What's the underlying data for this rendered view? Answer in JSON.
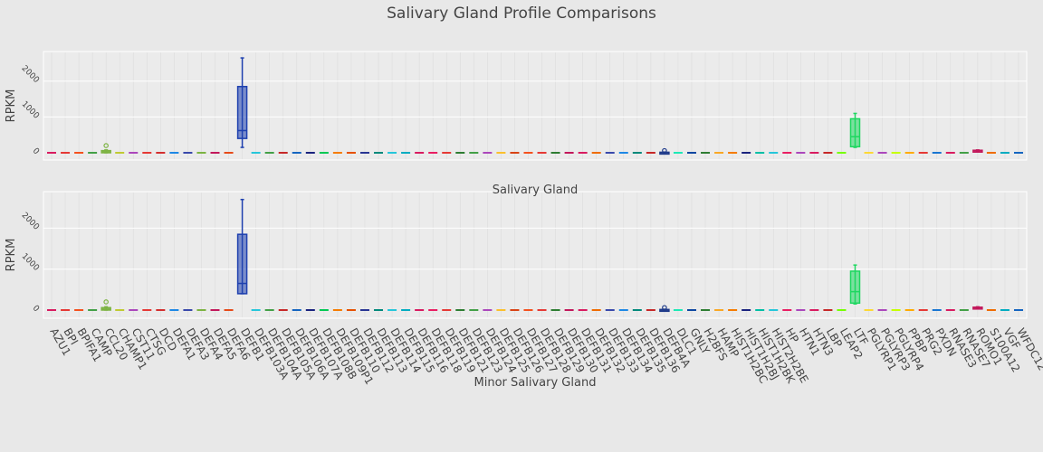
{
  "chart_data": {
    "type": "box",
    "title": "Salivary Gland Profile Comparisons",
    "categories": [
      "AZU1",
      "BPI",
      "BPIFA1",
      "CAMP",
      "CCL20",
      "CHAMP1",
      "CST11",
      "CTSG",
      "DCD",
      "DEFA1",
      "DEFA3",
      "DEFA4",
      "DEFA5",
      "DEFA6",
      "DEFB1",
      "DEFB103A",
      "DEFB104A",
      "DEFB105A",
      "DEFB106A",
      "DEFB107A",
      "DEFB108B",
      "DEFB109P1",
      "DEFB110",
      "DEFB112",
      "DEFB113",
      "DEFB114",
      "DEFB115",
      "DEFB116",
      "DEFB118",
      "DEFB119",
      "DEFB121",
      "DEFB123",
      "DEFB124",
      "DEFB125",
      "DEFB126",
      "DEFB127",
      "DEFB128",
      "DEFB129",
      "DEFB130",
      "DEFB131",
      "DEFB132",
      "DEFB133",
      "DEFB134",
      "DEFB135",
      "DEFB136",
      "DEFB4A",
      "DLC1",
      "GNLY",
      "H2BFS",
      "HAMP",
      "HIST1H2BC",
      "HIST1H2BJ",
      "HIST1H2BK",
      "HIST2H2BE",
      "HP",
      "HTN1",
      "HTN3",
      "LBP",
      "LEAP2",
      "LTF",
      "PGLYRP1",
      "PGLYRP3",
      "PGLYRP4",
      "PPBP",
      "PRG2",
      "PXDN",
      "RNASE3",
      "RNASE7",
      "ROMO1",
      "S100A12",
      "VGF",
      "WFDC12"
    ],
    "colors": [
      "#d81b60",
      "#e53935",
      "#f4511e",
      "#43a047",
      "#7cb342",
      "#c0ca33",
      "#ab47bc",
      "#e53935",
      "#d32f2f",
      "#1e88e5",
      "#3949ab",
      "#7cb342",
      "#c2185b",
      "#e64a19",
      "#1e40af",
      "#26c6da",
      "#43a047",
      "#c62828",
      "#1565c0",
      "#1a237e",
      "#00c853",
      "#f57c00",
      "#e65100",
      "#283593",
      "#00897b",
      "#26c6da",
      "#00acc1",
      "#d81b60",
      "#e91e63",
      "#e53935",
      "#2e7d32",
      "#43a047",
      "#ab47bc",
      "#fbc02d",
      "#d84315",
      "#f4511e",
      "#e53935",
      "#2e7d32",
      "#c2185b",
      "#d81b60",
      "#ef6c00",
      "#3949ab",
      "#1e88e5",
      "#00897b",
      "#c62828",
      "#1e3a8a",
      "#1de9b6",
      "#0d47a1",
      "#2e7d32",
      "#f9a825",
      "#f57c00",
      "#1a237e",
      "#00bfa5",
      "#26c6da",
      "#e91e63",
      "#ab47bc",
      "#d81b60",
      "#c62828",
      "#76ff03",
      "#1ed760",
      "#fdd835",
      "#ab47bc",
      "#c6ff00",
      "#ffab00",
      "#e53935",
      "#1976d2",
      "#d81b60",
      "#43a047",
      "#c2185b",
      "#ef6c00",
      "#00acc1",
      "#1565c0"
    ],
    "panels": [
      {
        "subtitle": "Salivary Gland",
        "ylabel": "RPKM",
        "yticks": [
          "0",
          "1000",
          "2000"
        ],
        "ylim": [
          -100,
          2800
        ],
        "boxes": [
          {
            "category": "CCL20",
            "min": 0,
            "q1": 0,
            "median": 25,
            "q3": 60,
            "max": 80,
            "outliers": [
              200
            ]
          },
          {
            "category": "DEFB1",
            "min": 150,
            "q1": 400,
            "median": 620,
            "q3": 1850,
            "max": 2650,
            "outliers": []
          },
          {
            "category": "DEFB4A",
            "min": 0,
            "q1": 0,
            "median": 5,
            "q3": 15,
            "max": 20,
            "outliers": [
              60
            ]
          },
          {
            "category": "LTF",
            "min": 150,
            "q1": 170,
            "median": 450,
            "q3": 950,
            "max": 1100,
            "outliers": []
          },
          {
            "category": "ROMO1",
            "min": 40,
            "q1": 50,
            "median": 60,
            "q3": 70,
            "max": 80,
            "outliers": []
          }
        ]
      },
      {
        "subtitle": "Minor Salivary Gland",
        "ylabel": "RPKM",
        "yticks": [
          "0",
          "1000",
          "2000"
        ],
        "ylim": [
          -100,
          2800
        ],
        "boxes": [
          {
            "category": "CCL20",
            "min": 0,
            "q1": 0,
            "median": 25,
            "q3": 60,
            "max": 80,
            "outliers": [
              200
            ]
          },
          {
            "category": "DEFB1",
            "min": 400,
            "q1": 400,
            "median": 650,
            "q3": 1850,
            "max": 2700,
            "outliers": []
          },
          {
            "category": "DEFB4A",
            "min": 0,
            "q1": 0,
            "median": 5,
            "q3": 15,
            "max": 20,
            "outliers": [
              60
            ]
          },
          {
            "category": "LTF",
            "min": 150,
            "q1": 170,
            "median": 450,
            "q3": 950,
            "max": 1100,
            "outliers": []
          },
          {
            "category": "ROMO1",
            "min": 40,
            "q1": 50,
            "median": 60,
            "q3": 70,
            "max": 80,
            "outliers": []
          }
        ]
      }
    ]
  }
}
